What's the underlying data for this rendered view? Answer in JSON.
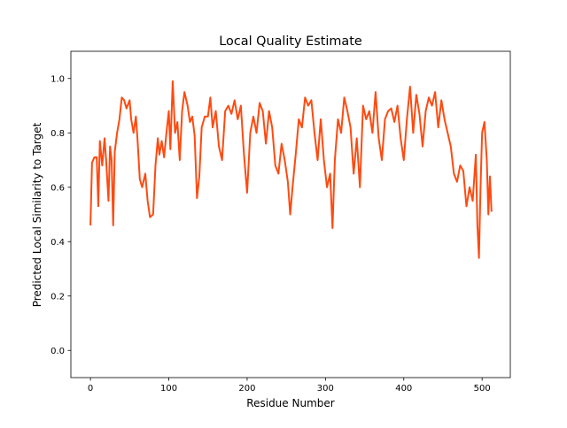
{
  "chart_data": {
    "type": "line",
    "title": "Local Quality Estimate",
    "xlabel": "Residue Number",
    "ylabel": "Predicted Local Similarity to Target",
    "xlim": [
      -25,
      536
    ],
    "ylim": [
      -0.1,
      1.1
    ],
    "xticks": [
      0,
      100,
      200,
      300,
      400,
      500
    ],
    "yticks": [
      {
        "value": 0,
        "label": "0.0"
      },
      0.2,
      0.4,
      0.6,
      0.8,
      {
        "value": 1,
        "label": "1.0"
      }
    ],
    "grid": false,
    "series": [
      {
        "color": "#ff4a10",
        "x": [
          0,
          2,
          5,
          8,
          10,
          12,
          15,
          18,
          20,
          23,
          25,
          27,
          29,
          31,
          34,
          37,
          40,
          43,
          46,
          50,
          52,
          55,
          58,
          60,
          63,
          66,
          70,
          73,
          76,
          80,
          83,
          86,
          88,
          91,
          94,
          97,
          100,
          102,
          105,
          108,
          111,
          114,
          117,
          120,
          124,
          127,
          130,
          133,
          136,
          139,
          142,
          146,
          150,
          153,
          156,
          160,
          164,
          168,
          172,
          176,
          180,
          184,
          188,
          192,
          196,
          200,
          204,
          208,
          212,
          216,
          220,
          224,
          228,
          232,
          236,
          240,
          244,
          248,
          252,
          255,
          258,
          262,
          266,
          270,
          274,
          278,
          282,
          286,
          290,
          294,
          298,
          302,
          306,
          309,
          312,
          316,
          320,
          324,
          328,
          332,
          336,
          340,
          344,
          348,
          352,
          356,
          360,
          364,
          368,
          372,
          376,
          380,
          384,
          388,
          392,
          396,
          400,
          404,
          408,
          412,
          416,
          420,
          424,
          428,
          432,
          436,
          440,
          444,
          448,
          452,
          456,
          460,
          464,
          468,
          472,
          476,
          480,
          484,
          488,
          492,
          494,
          496,
          498,
          500,
          503,
          506,
          508,
          510,
          512
        ],
        "values": [
          0.46,
          0.69,
          0.71,
          0.71,
          0.53,
          0.77,
          0.68,
          0.78,
          0.7,
          0.55,
          0.75,
          0.7,
          0.46,
          0.73,
          0.8,
          0.85,
          0.93,
          0.92,
          0.89,
          0.92,
          0.85,
          0.8,
          0.86,
          0.78,
          0.63,
          0.6,
          0.65,
          0.55,
          0.49,
          0.5,
          0.68,
          0.78,
          0.72,
          0.77,
          0.71,
          0.8,
          0.88,
          0.74,
          0.99,
          0.8,
          0.84,
          0.7,
          0.88,
          0.95,
          0.9,
          0.84,
          0.86,
          0.79,
          0.56,
          0.64,
          0.82,
          0.86,
          0.86,
          0.93,
          0.82,
          0.88,
          0.75,
          0.7,
          0.88,
          0.9,
          0.87,
          0.92,
          0.85,
          0.9,
          0.72,
          0.58,
          0.8,
          0.86,
          0.8,
          0.91,
          0.88,
          0.76,
          0.88,
          0.82,
          0.68,
          0.65,
          0.76,
          0.7,
          0.62,
          0.5,
          0.6,
          0.72,
          0.85,
          0.82,
          0.93,
          0.9,
          0.92,
          0.8,
          0.7,
          0.85,
          0.7,
          0.6,
          0.65,
          0.45,
          0.7,
          0.85,
          0.8,
          0.93,
          0.88,
          0.82,
          0.65,
          0.78,
          0.6,
          0.9,
          0.85,
          0.88,
          0.8,
          0.95,
          0.78,
          0.7,
          0.85,
          0.88,
          0.89,
          0.84,
          0.9,
          0.78,
          0.7,
          0.85,
          0.97,
          0.8,
          0.94,
          0.87,
          0.75,
          0.88,
          0.93,
          0.9,
          0.95,
          0.82,
          0.92,
          0.85,
          0.8,
          0.75,
          0.65,
          0.62,
          0.68,
          0.66,
          0.53,
          0.6,
          0.55,
          0.72,
          0.46,
          0.34,
          0.6,
          0.8,
          0.84,
          0.7,
          0.5,
          0.64,
          0.51
        ]
      }
    ]
  }
}
